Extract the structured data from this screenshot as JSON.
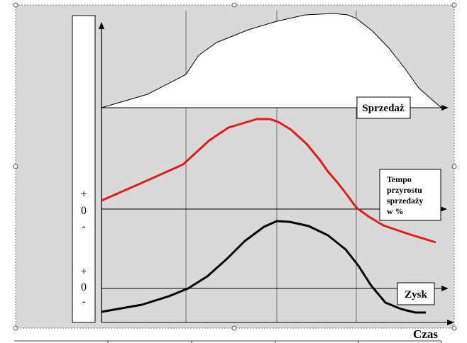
{
  "chart_data": {
    "type": "line",
    "xlabel": "Czas",
    "grid": true,
    "panels": [
      {
        "series": [
          {
            "name": "Sprzedaż"
          }
        ],
        "label": "Sprzedaż"
      },
      {
        "series": [
          {
            "name": "Tempo przyrostu sprzedaży w %"
          }
        ],
        "label_lines": [
          "Tempo",
          "przyrostu",
          "sprzedaży",
          "w %"
        ],
        "axis_signs": [
          "+",
          "0",
          "-"
        ]
      },
      {
        "series": [
          {
            "name": "Zysk"
          }
        ],
        "label": "Zysk",
        "axis_signs": [
          "+",
          "0",
          "-"
        ]
      }
    ],
    "colors": {
      "sales": "#000000",
      "growth": "#e31b1b",
      "profit": "#000000",
      "background": "#d9d9d9"
    }
  }
}
